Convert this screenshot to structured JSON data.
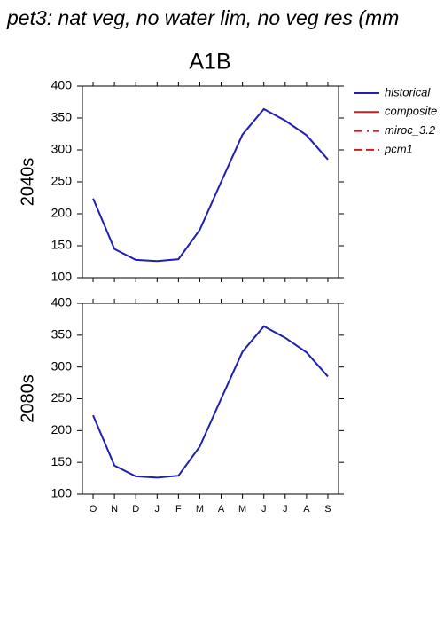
{
  "title": "pet3: nat veg, no water lim, no veg res (mm",
  "column_title": "A1B",
  "chart_data": [
    {
      "type": "line",
      "row_label": "2040s",
      "categories": [
        "O",
        "N",
        "D",
        "J",
        "F",
        "M",
        "A",
        "M",
        "J",
        "J",
        "A",
        "S"
      ],
      "ylim": [
        100,
        400
      ],
      "yticks": [
        100,
        150,
        200,
        250,
        300,
        350,
        400
      ],
      "series": [
        {
          "name": "historical",
          "color": "#1f1fb4",
          "dash": "solid",
          "values": [
            224,
            145,
            128,
            126,
            129,
            175,
            250,
            324,
            364,
            346,
            323,
            285
          ]
        },
        {
          "name": "composite",
          "color": "#c81e1e",
          "dash": "solid",
          "values": [
            null,
            null,
            null,
            null,
            null,
            null,
            null,
            null,
            null,
            null,
            null,
            null
          ]
        },
        {
          "name": "miroc_3.2",
          "color": "#c81e1e",
          "dash": "dashdot",
          "values": [
            null,
            null,
            null,
            null,
            null,
            null,
            null,
            null,
            null,
            null,
            null,
            null
          ]
        },
        {
          "name": "pcm1",
          "color": "#c81e1e",
          "dash": "dashed",
          "values": [
            null,
            null,
            null,
            null,
            null,
            null,
            null,
            null,
            null,
            null,
            null,
            null
          ]
        }
      ]
    },
    {
      "type": "line",
      "row_label": "2080s",
      "categories": [
        "O",
        "N",
        "D",
        "J",
        "F",
        "M",
        "A",
        "M",
        "J",
        "J",
        "A",
        "S"
      ],
      "ylim": [
        100,
        400
      ],
      "yticks": [
        100,
        150,
        200,
        250,
        300,
        350,
        400
      ],
      "series": [
        {
          "color": "#1f1fb4",
          "dash": "solid",
          "values": [
            224,
            145,
            128,
            126,
            129,
            175,
            250,
            324,
            364,
            346,
            323,
            285
          ]
        }
      ]
    }
  ]
}
